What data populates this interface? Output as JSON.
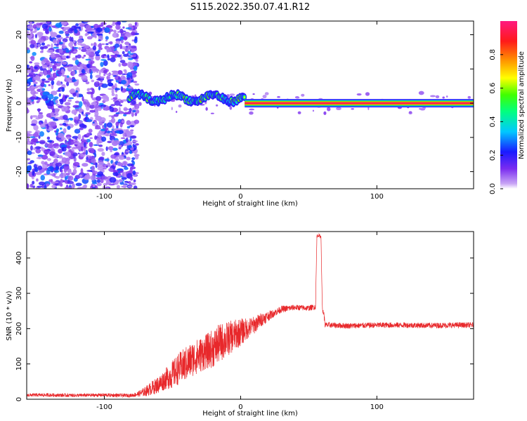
{
  "title": "S115.2022.350.07.41.R12",
  "colors": {
    "snr_line": "#e8282b",
    "axis": "#000000",
    "background": "#ffffff"
  },
  "chart_data": [
    {
      "type": "heatmap",
      "xlabel": "Height of straight line (km)",
      "ylabel": "Frequency (Hz)",
      "xlim": [
        -157,
        171
      ],
      "ylim": [
        -25,
        24
      ],
      "xticks": [
        -100,
        0,
        100
      ],
      "yticks": [
        -20,
        -10,
        0,
        10,
        20
      ],
      "xtick_labels": [
        "-100",
        "0",
        "100"
      ],
      "ytick_labels": [
        "-20",
        "-10",
        "0",
        "10",
        "20"
      ],
      "colorbar": {
        "label": "Normalized spectral amplitude",
        "range": [
          0,
          1
        ],
        "ticks": [
          0.0,
          0.2,
          0.4,
          0.6,
          0.8
        ],
        "tick_labels": [
          "0.0",
          "0.2",
          "0.4",
          "0.6",
          "0.8"
        ],
        "colormap": "rainbow"
      },
      "features": [
        {
          "description": "scattered noise",
          "x_range": [
            -157,
            -80
          ],
          "f_range": [
            -25,
            24
          ],
          "amplitude_range": [
            0.05,
            0.3
          ]
        },
        {
          "description": "wandering signal",
          "x_range": [
            -82,
            3
          ],
          "f_center": [
            0.5,
            2.5
          ],
          "amplitude_range": [
            0.3,
            0.8
          ]
        },
        {
          "description": "steady carrier",
          "x_range": [
            3,
            171
          ],
          "f_center": 0,
          "amplitude": 0.95
        }
      ]
    },
    {
      "type": "line",
      "xlabel": "Height of straight line (km)",
      "ylabel": "SNR (10 * v/v)",
      "xlim": [
        -157,
        171
      ],
      "ylim": [
        0,
        475
      ],
      "xticks": [
        -100,
        0,
        100
      ],
      "yticks": [
        0,
        100,
        200,
        300,
        400
      ],
      "xtick_labels": [
        "-100",
        "0",
        "100"
      ],
      "ytick_labels": [
        "0",
        "100",
        "200",
        "300",
        "400"
      ],
      "series": [
        {
          "color": "#e8282b",
          "x": [
            -157,
            -140,
            -120,
            -100,
            -90,
            -80,
            -75,
            -70,
            -65,
            -60,
            -55,
            -50,
            -45,
            -40,
            -35,
            -30,
            -25,
            -20,
            -15,
            -10,
            -5,
            0,
            5,
            10,
            15,
            20,
            25,
            30,
            40,
            50,
            55,
            56,
            57,
            58,
            59,
            60,
            61,
            62,
            63,
            65,
            80,
            100,
            120,
            140,
            160,
            171
          ],
          "y": [
            12,
            12,
            11,
            12,
            11,
            11,
            15,
            22,
            32,
            42,
            58,
            70,
            88,
            100,
            115,
            125,
            135,
            145,
            160,
            170,
            180,
            190,
            200,
            210,
            225,
            235,
            245,
            255,
            260,
            258,
            262,
            462,
            465,
            462,
            460,
            250,
            245,
            210,
            210,
            210,
            208,
            210,
            210,
            209,
            210,
            210
          ],
          "noise_amplitude": [
            5,
            5,
            5,
            5,
            5,
            5,
            8,
            14,
            20,
            25,
            30,
            40,
            45,
            50,
            50,
            50,
            50,
            55,
            55,
            50,
            45,
            40,
            30,
            25,
            20,
            15,
            10,
            10,
            8,
            8,
            8,
            5,
            5,
            5,
            5,
            10,
            10,
            8,
            8,
            8,
            8,
            8,
            8,
            8,
            8,
            8
          ]
        }
      ]
    }
  ]
}
